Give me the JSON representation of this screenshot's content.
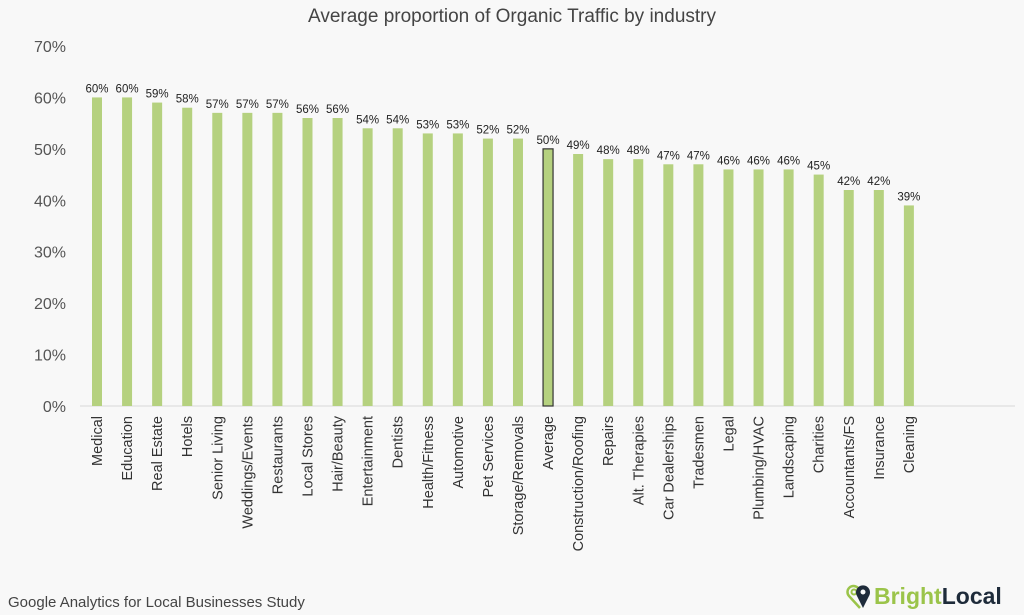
{
  "chart_data": {
    "type": "bar",
    "title": "Average proportion of Organic Traffic by industry",
    "categories": [
      "Medical",
      "Education",
      "Real Estate",
      "Hotels",
      "Senior Living",
      "Weddings/Events",
      "Restaurants",
      "Local Stores",
      "Hair/Beauty",
      "Entertainment",
      "Dentists",
      "Health/Fitness",
      "Automotive",
      "Pet Services",
      "Storage/Removals",
      "Average",
      "Construction/Roofing",
      "Repairs",
      "Alt. Therapies",
      "Car Dealerships",
      "Tradesmen",
      "Legal",
      "Plumbing/HVAC",
      "Landscaping",
      "Charities",
      "Accountants/FS",
      "Insurance",
      "Cleaning"
    ],
    "values": [
      60,
      60,
      59,
      58,
      57,
      57,
      57,
      56,
      56,
      54,
      54,
      53,
      53,
      52,
      52,
      50,
      49,
      48,
      48,
      47,
      47,
      46,
      46,
      46,
      45,
      42,
      42,
      39
    ],
    "data_labels": [
      "60%",
      "60%",
      "59%",
      "58%",
      "57%",
      "57%",
      "57%",
      "56%",
      "56%",
      "54%",
      "54%",
      "53%",
      "53%",
      "52%",
      "52%",
      "50%",
      "49%",
      "48%",
      "48%",
      "47%",
      "47%",
      "46%",
      "46%",
      "46%",
      "45%",
      "42%",
      "42%",
      "39%"
    ],
    "highlight_category": "Average",
    "ylim": [
      0,
      70
    ],
    "yticks": [
      "0%",
      "10%",
      "20%",
      "30%",
      "40%",
      "50%",
      "60%",
      "70%"
    ],
    "xlabel": "",
    "ylabel": "",
    "grid": false,
    "colors": {
      "bar": "#b5d17f",
      "highlight_border": "#333333"
    }
  },
  "footer": "Google Analytics for Local Businesses Study",
  "logo": {
    "part1": "Bright",
    "part2": "Local"
  }
}
